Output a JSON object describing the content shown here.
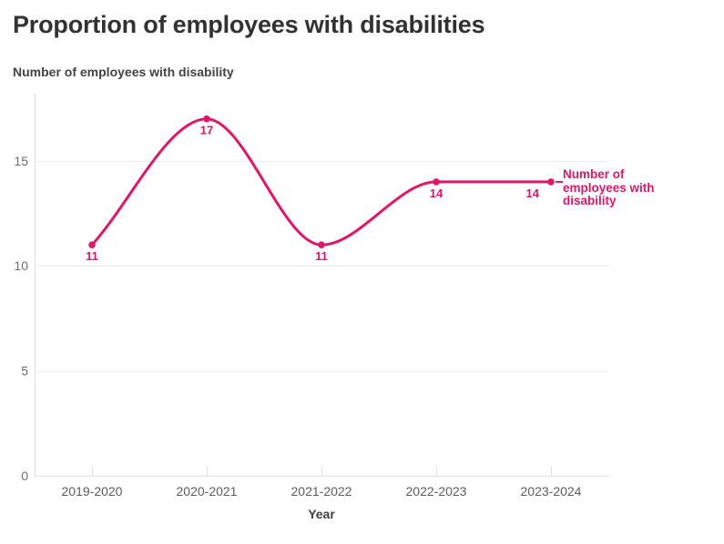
{
  "header": {
    "title": "Proportion of employees with disabilities"
  },
  "chart_data": {
    "type": "line",
    "title": "Number of employees with disability",
    "categories": [
      "2019-2020",
      "2020-2021",
      "2021-2022",
      "2022-2023",
      "2023-2024"
    ],
    "series": [
      {
        "name": "Number of employees with disability",
        "values": [
          11,
          17,
          11,
          14,
          14
        ],
        "color": "#de1768"
      }
    ],
    "data_labels": [
      11,
      17,
      11,
      14,
      14
    ],
    "xlabel": "Year",
    "ylabel": "",
    "yticks": [
      0,
      5,
      10,
      15
    ],
    "ylim": [
      0,
      18.2
    ],
    "grid": true,
    "curve": "monotone",
    "legend_position": "right-of-last-point"
  },
  "colors": {
    "accent": "#de1768",
    "title_text": "#323232",
    "subtitle_text": "#434343",
    "grid_line": "#ededed",
    "axis_line": "#e0e0e0",
    "x_tick_text": "#5c5c5c",
    "y_tick_text": "#6d6d6d",
    "background": "#ffffff"
  }
}
